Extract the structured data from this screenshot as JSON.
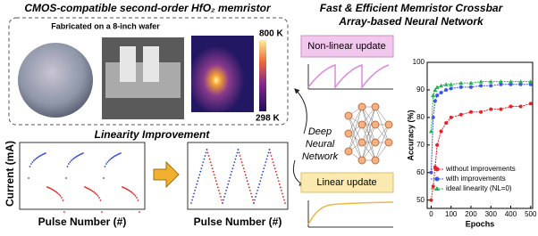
{
  "left_panel": {
    "title": "CMOS-compatible second-order HfO₂ memristor",
    "wafer_caption": "Fabricated on a 8-inch wafer",
    "colorbar_max": "800 K",
    "colorbar_min": "298 K",
    "linearity_title": "Linearity Improvement",
    "y_label": "Current (mA)",
    "x_label_before": "Pulse Number (#)",
    "x_label_after": "Pulse Number (#)"
  },
  "right_panel": {
    "title_line1": "Fast & Efficient Memristor Crossbar",
    "title_line2": "Array-based Neural Network",
    "nonlinear_label": "Non-linear update",
    "linear_label": "Linear update",
    "network_line1": "Deep",
    "network_line2": "Neural",
    "network_line3": "Network"
  },
  "chart_data": {
    "type": "line",
    "x_label": "Epochs",
    "y_label": "Accuracy (%)",
    "x": [
      0,
      10,
      20,
      30,
      50,
      75,
      100,
      150,
      200,
      250,
      300,
      350,
      400,
      450,
      500
    ],
    "series": [
      {
        "name": "without improvements",
        "color": "#e8202a",
        "marker": "circle",
        "values": [
          50,
          55,
          62,
          70,
          75,
          78,
          80,
          81,
          82,
          82,
          83,
          83,
          84,
          84,
          85
        ]
      },
      {
        "name": "with improvements",
        "color": "#3a55e8",
        "marker": "circle",
        "values": [
          60,
          80,
          86,
          88,
          89,
          90,
          90.5,
          91,
          91,
          91.5,
          91.5,
          92,
          92,
          92,
          92
        ]
      },
      {
        "name": "ideal linearity (NL=0)",
        "color": "#22b24c",
        "marker": "triangle",
        "values": [
          75,
          88,
          90,
          91,
          91.5,
          92,
          92,
          92.5,
          92.5,
          93,
          93,
          93,
          93,
          93,
          93
        ]
      }
    ],
    "xlim": [
      -20,
      510
    ],
    "ylim": [
      47,
      100
    ],
    "xticks": [
      0,
      100,
      200,
      300,
      400,
      500
    ],
    "yticks": [
      50,
      60,
      70,
      80,
      90,
      100
    ]
  }
}
